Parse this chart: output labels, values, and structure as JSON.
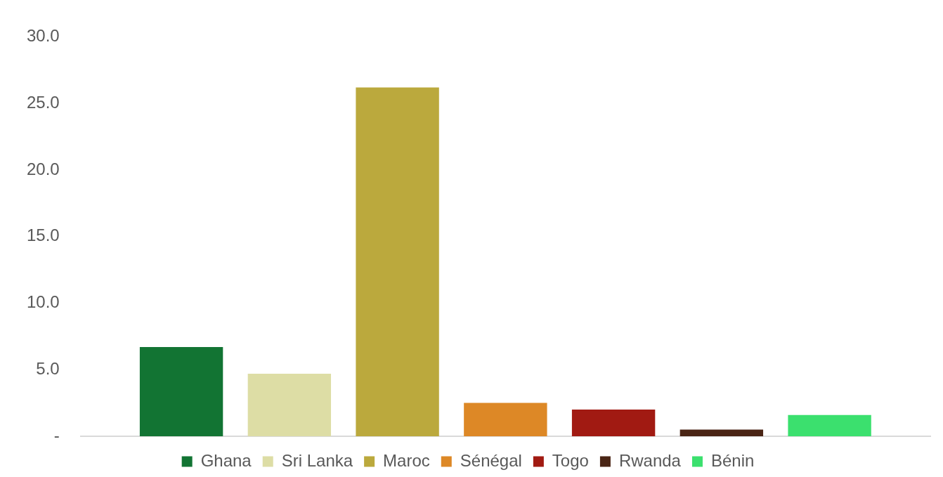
{
  "chart_data": {
    "type": "bar",
    "categories": [
      null
    ],
    "series": [
      {
        "name": "Ghana",
        "color": "#127433",
        "values": [
          6.7
        ]
      },
      {
        "name": "Sri Lanka",
        "color": "#dddda5",
        "values": [
          4.7
        ]
      },
      {
        "name": "Maroc",
        "color": "#bba93d",
        "values": [
          26.2
        ]
      },
      {
        "name": "Sénégal",
        "color": "#dd8826",
        "values": [
          2.5
        ]
      },
      {
        "name": "Togo",
        "color": "#a11a12",
        "values": [
          2.0
        ]
      },
      {
        "name": "Rwanda",
        "color": "#4a2515",
        "values": [
          0.5
        ]
      },
      {
        "name": "Bénin",
        "color": "#3be06e",
        "values": [
          1.6
        ]
      }
    ],
    "ylim": [
      0,
      30
    ],
    "yticks": [
      {
        "value": 0,
        "label": "-"
      },
      {
        "value": 5,
        "label": "5.0"
      },
      {
        "value": 10,
        "label": "10.0"
      },
      {
        "value": 15,
        "label": "15.0"
      },
      {
        "value": 20,
        "label": "20.0"
      },
      {
        "value": 25,
        "label": "25.0"
      },
      {
        "value": 30,
        "label": "30.0"
      }
    ],
    "grid": false,
    "legend": "bottom"
  }
}
